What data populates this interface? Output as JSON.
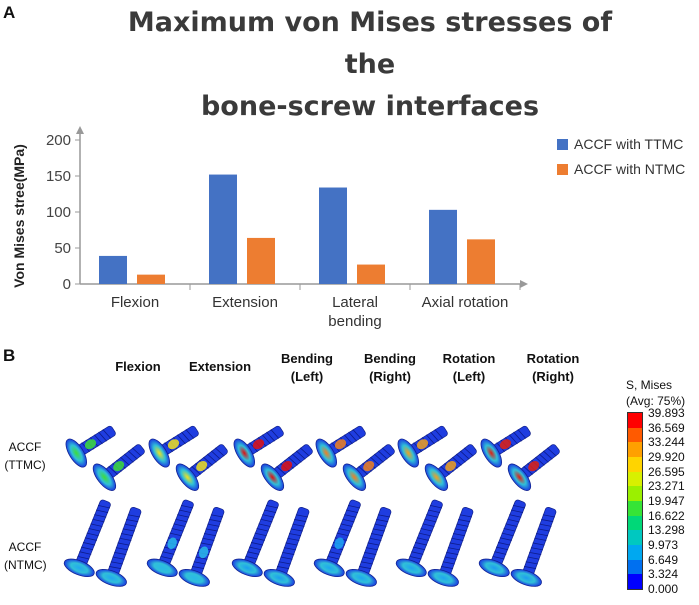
{
  "panel_a_label": "A",
  "panel_b_label": "B",
  "chart_data": {
    "type": "bar",
    "title": "Maximum von Mises stresses of the bone-screw interfaces",
    "title_lines": [
      "Maximum von Mises stresses of the",
      "bone-screw interfaces"
    ],
    "xlabel": "",
    "ylabel": "Von Mises stree(MPa)",
    "ylim": [
      0,
      200
    ],
    "yticks": [
      0,
      50,
      100,
      150,
      200
    ],
    "categories": [
      "Flexion",
      "Extension",
      "Lateral bending",
      "Axial rotation"
    ],
    "category_lines": [
      [
        "Flexion"
      ],
      [
        "Extension"
      ],
      [
        "Lateral",
        "bending"
      ],
      [
        "Axial rotation"
      ]
    ],
    "series": [
      {
        "name": "ACCF with TTMC",
        "color": "#4472C4",
        "values": [
          39,
          152,
          134,
          103
        ]
      },
      {
        "name": "ACCF with NTMC",
        "color": "#ED7D31",
        "values": [
          13,
          64,
          27,
          62
        ]
      }
    ],
    "legend_position": "right",
    "grid": false
  },
  "panel_b": {
    "columns": [
      {
        "line1": "Flexion",
        "line2": ""
      },
      {
        "line1": "Extension",
        "line2": ""
      },
      {
        "line1": "Bending",
        "line2": "(Left)"
      },
      {
        "line1": "Bending",
        "line2": "(Right)"
      },
      {
        "line1": "Rotation",
        "line2": "(Left)"
      },
      {
        "line1": "Rotation",
        "line2": "(Right)"
      }
    ],
    "rows": [
      {
        "line1": "ACCF",
        "line2": "(TTMC)"
      },
      {
        "line1": "ACCF",
        "line2": "(NTMC)"
      }
    ],
    "hotspot_colors": [
      [
        "#3ddc3a",
        "#f0e020",
        "#e01010",
        "#f08020",
        "#f0a020",
        "#e02010"
      ],
      [
        "#22a8f0",
        "#2ab8e8",
        "#1c9ef0",
        "#1ea6f0",
        "#20a4f0",
        "#1f9cf0"
      ]
    ],
    "colorbar": {
      "title_line1": "S, Mises",
      "title_line2": "(Avg: 75%)",
      "values": [
        "39.893",
        "36.569",
        "33.244",
        "29.920",
        "26.595",
        "23.271",
        "19.947",
        "16.622",
        "13.298",
        "9.973",
        "6.649",
        "3.324",
        "0.000"
      ],
      "colors": [
        "#ff0000",
        "#ff5a00",
        "#ffa000",
        "#ffd400",
        "#d8f000",
        "#9bf000",
        "#36e436",
        "#00d878",
        "#00c8c0",
        "#00a8f0",
        "#0070f0",
        "#0000ff"
      ]
    }
  }
}
